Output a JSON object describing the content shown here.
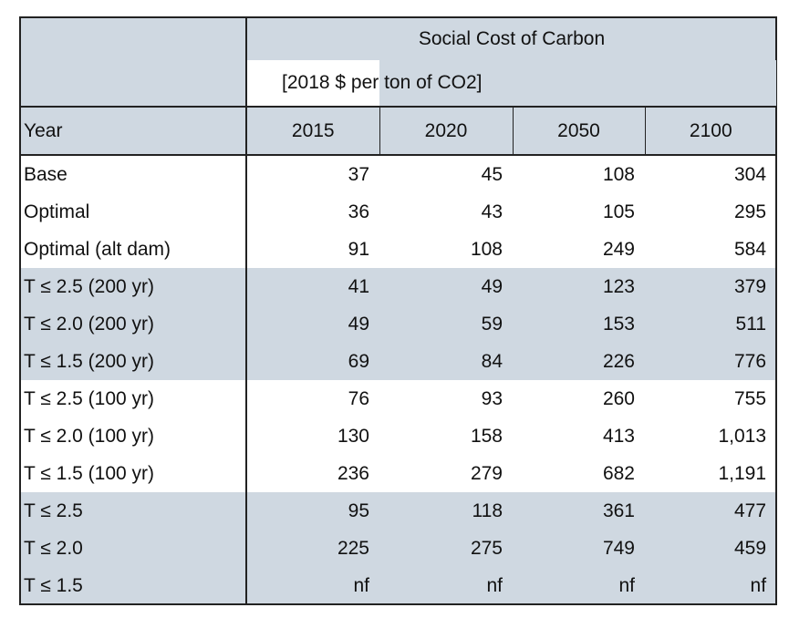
{
  "header": {
    "title": "Social Cost of Carbon",
    "units": "[2018 $ per ton of CO2]",
    "year_label": "Year"
  },
  "columns": [
    "2015",
    "2020",
    "2050",
    "2100"
  ],
  "rows": [
    {
      "label": "Base",
      "values": [
        "37",
        "45",
        "108",
        "304"
      ]
    },
    {
      "label": "Optimal",
      "values": [
        "36",
        "43",
        "105",
        "295"
      ]
    },
    {
      "label": "Optimal (alt dam)",
      "values": [
        "91",
        "108",
        "249",
        "584"
      ]
    },
    {
      "label": "T ≤ 2.5 (200 yr)",
      "values": [
        "41",
        "49",
        "123",
        "379"
      ]
    },
    {
      "label": "T ≤ 2.0 (200 yr)",
      "values": [
        "49",
        "59",
        "153",
        "511"
      ]
    },
    {
      "label": "T ≤ 1.5 (200 yr)",
      "values": [
        "69",
        "84",
        "226",
        "776"
      ]
    },
    {
      "label": "T ≤ 2.5 (100 yr)",
      "values": [
        "76",
        "93",
        "260",
        "755"
      ]
    },
    {
      "label": "T ≤ 2.0 (100 yr)",
      "values": [
        "130",
        "158",
        "413",
        "1,013"
      ]
    },
    {
      "label": "T ≤ 1.5 (100 yr)",
      "values": [
        "236",
        "279",
        "682",
        "1,191"
      ]
    },
    {
      "label": "T ≤ 2.5",
      "values": [
        "95",
        "118",
        "361",
        "477"
      ]
    },
    {
      "label": "T ≤ 2.0",
      "values": [
        "225",
        "275",
        "749",
        "459"
      ]
    },
    {
      "label": "T ≤ 1.5",
      "values": [
        "nf",
        "nf",
        "nf",
        "nf"
      ]
    }
  ],
  "colors": {
    "shade": "#cfd8e1",
    "white": "#ffffff",
    "border": "#222222"
  }
}
